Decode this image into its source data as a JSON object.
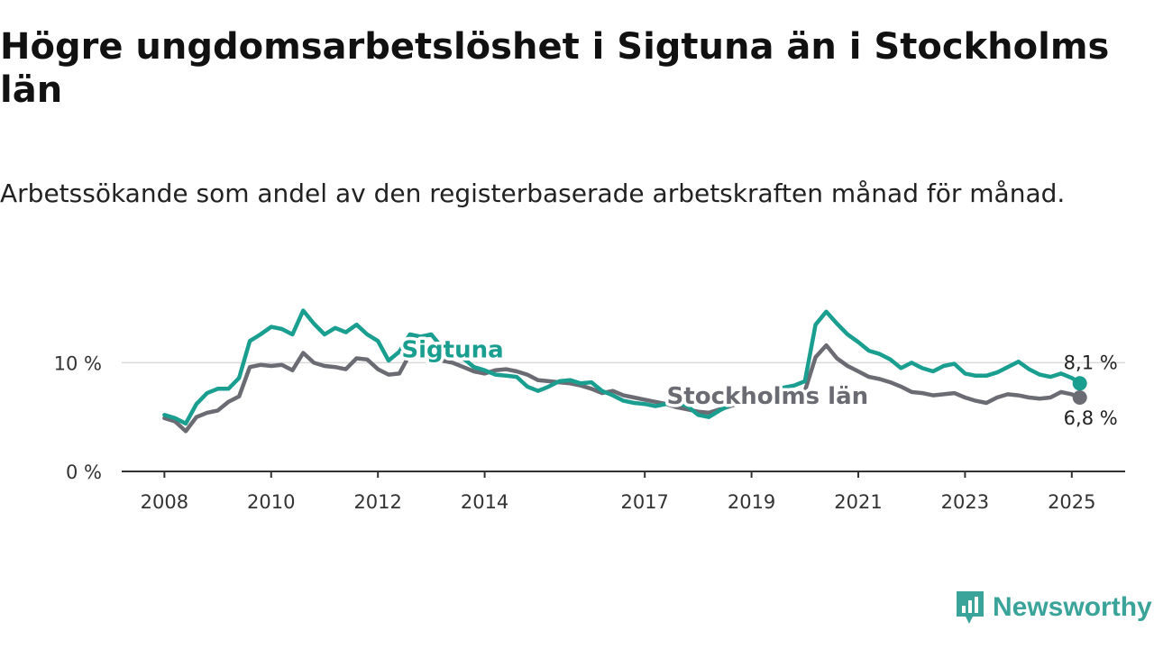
{
  "title": "Högre ungdomsarbetslöshet i Sigtuna än i Stockholms län",
  "subtitle": "Arbetssökande som andel av den registerbaserade arbetskraften månad för månad.",
  "brand": {
    "name": "Newsworthy",
    "icon": "newsworthy-logo-icon",
    "color": "#3aa39a"
  },
  "chart_data": {
    "type": "line",
    "xlim": [
      2007.2,
      2026.0
    ],
    "ylim": [
      0,
      16
    ],
    "y_ticks": [
      {
        "value": 0,
        "label": "0 %"
      },
      {
        "value": 10,
        "label": "10 %"
      }
    ],
    "x_ticks": [
      {
        "value": 2008,
        "label": "2008"
      },
      {
        "value": 2010,
        "label": "2010"
      },
      {
        "value": 2012,
        "label": "2012"
      },
      {
        "value": 2014,
        "label": "2014"
      },
      {
        "value": 2017,
        "label": "2017"
      },
      {
        "value": 2019,
        "label": "2019"
      },
      {
        "value": 2021,
        "label": "2021"
      },
      {
        "value": 2023,
        "label": "2023"
      },
      {
        "value": 2025,
        "label": "2025"
      }
    ],
    "grid": "horizontal",
    "series": [
      {
        "name": "Sigtuna",
        "color": "#1a9e8f",
        "end_label": "8,1 %",
        "x": [
          2008.0,
          2008.2,
          2008.4,
          2008.6,
          2008.8,
          2009.0,
          2009.2,
          2009.4,
          2009.6,
          2009.8,
          2010.0,
          2010.2,
          2010.4,
          2010.6,
          2010.8,
          2011.0,
          2011.2,
          2011.4,
          2011.6,
          2011.8,
          2012.0,
          2012.2,
          2012.4,
          2012.6,
          2012.8,
          2013.0,
          2013.2,
          2013.4,
          2013.6,
          2013.8,
          2014.0,
          2014.2,
          2014.4,
          2014.6,
          2014.8,
          2015.0,
          2015.2,
          2015.4,
          2015.6,
          2015.8,
          2016.0,
          2016.2,
          2016.4,
          2016.6,
          2016.8,
          2017.0,
          2017.2,
          2017.4,
          2017.6,
          2017.8,
          2018.0,
          2018.2,
          2018.4,
          2018.6,
          2018.8,
          2019.0,
          2019.2,
          2019.4,
          2019.6,
          2019.8,
          2020.0,
          2020.2,
          2020.4,
          2020.6,
          2020.8,
          2021.0,
          2021.2,
          2021.4,
          2021.6,
          2021.8,
          2022.0,
          2022.2,
          2022.4,
          2022.6,
          2022.8,
          2023.0,
          2023.2,
          2023.4,
          2023.6,
          2023.8,
          2024.0,
          2024.2,
          2024.4,
          2024.6,
          2024.8,
          2025.0,
          2025.15
        ],
        "y": [
          5.2,
          4.9,
          4.4,
          6.2,
          7.2,
          7.6,
          7.6,
          8.6,
          12.0,
          12.6,
          13.3,
          13.1,
          12.6,
          14.8,
          13.6,
          12.6,
          13.2,
          12.8,
          13.5,
          12.6,
          12.0,
          10.2,
          11.0,
          12.6,
          12.4,
          12.6,
          11.4,
          11.0,
          10.4,
          9.6,
          9.3,
          8.9,
          8.8,
          8.7,
          7.8,
          7.4,
          7.8,
          8.3,
          8.4,
          8.1,
          8.2,
          7.4,
          7.0,
          6.5,
          6.3,
          6.2,
          6.0,
          6.2,
          6.3,
          6.0,
          5.2,
          5.0,
          5.6,
          6.1,
          6.5,
          6.7,
          6.9,
          7.3,
          7.7,
          7.9,
          8.3,
          13.5,
          14.7,
          13.6,
          12.6,
          11.9,
          11.1,
          10.8,
          10.3,
          9.5,
          10.0,
          9.5,
          9.2,
          9.7,
          9.9,
          9.0,
          8.8,
          8.8,
          9.1,
          9.6,
          10.1,
          9.4,
          8.9,
          8.7,
          9.0,
          8.6,
          8.1
        ]
      },
      {
        "name": "Stockholms län",
        "color": "#6b6b73",
        "end_label": "6,8 %",
        "x": [
          2008.0,
          2008.2,
          2008.4,
          2008.6,
          2008.8,
          2009.0,
          2009.2,
          2009.4,
          2009.6,
          2009.8,
          2010.0,
          2010.2,
          2010.4,
          2010.6,
          2010.8,
          2011.0,
          2011.2,
          2011.4,
          2011.6,
          2011.8,
          2012.0,
          2012.2,
          2012.4,
          2012.6,
          2012.8,
          2013.0,
          2013.2,
          2013.4,
          2013.6,
          2013.8,
          2014.0,
          2014.2,
          2014.4,
          2014.6,
          2014.8,
          2015.0,
          2015.2,
          2015.4,
          2015.6,
          2015.8,
          2016.0,
          2016.2,
          2016.4,
          2016.6,
          2016.8,
          2017.0,
          2017.2,
          2017.4,
          2017.6,
          2017.8,
          2018.0,
          2018.2,
          2018.4,
          2018.6,
          2018.8,
          2019.0,
          2019.2,
          2019.4,
          2019.6,
          2019.8,
          2020.0,
          2020.2,
          2020.4,
          2020.6,
          2020.8,
          2021.0,
          2021.2,
          2021.4,
          2021.6,
          2021.8,
          2022.0,
          2022.2,
          2022.4,
          2022.6,
          2022.8,
          2023.0,
          2023.2,
          2023.4,
          2023.6,
          2023.8,
          2024.0,
          2024.2,
          2024.4,
          2024.6,
          2024.8,
          2025.0,
          2025.15
        ],
        "y": [
          4.9,
          4.6,
          3.7,
          5.0,
          5.4,
          5.6,
          6.4,
          6.9,
          9.6,
          9.8,
          9.7,
          9.8,
          9.3,
          10.9,
          10.0,
          9.7,
          9.6,
          9.4,
          10.4,
          10.3,
          9.4,
          8.9,
          9.0,
          10.8,
          11.2,
          10.8,
          10.2,
          10.0,
          9.6,
          9.2,
          9.0,
          9.3,
          9.4,
          9.2,
          8.9,
          8.4,
          8.3,
          8.2,
          8.1,
          7.9,
          7.6,
          7.2,
          7.4,
          7.0,
          6.8,
          6.6,
          6.4,
          6.2,
          5.9,
          5.7,
          5.5,
          5.4,
          5.7,
          6.0,
          6.3,
          6.6,
          6.8,
          7.0,
          7.2,
          7.4,
          7.4,
          10.5,
          11.6,
          10.4,
          9.7,
          9.2,
          8.7,
          8.5,
          8.2,
          7.8,
          7.3,
          7.2,
          7.0,
          7.1,
          7.2,
          6.8,
          6.5,
          6.3,
          6.8,
          7.1,
          7.0,
          6.8,
          6.7,
          6.8,
          7.3,
          7.1,
          6.8
        ]
      }
    ],
    "annotations": [
      {
        "text": "Sigtuna",
        "series": "Sigtuna",
        "x": 2013.4,
        "y": 10.5
      },
      {
        "text": "Stockholms län",
        "series": "Stockholms län",
        "x": 2019.3,
        "y": 6.2
      }
    ]
  }
}
